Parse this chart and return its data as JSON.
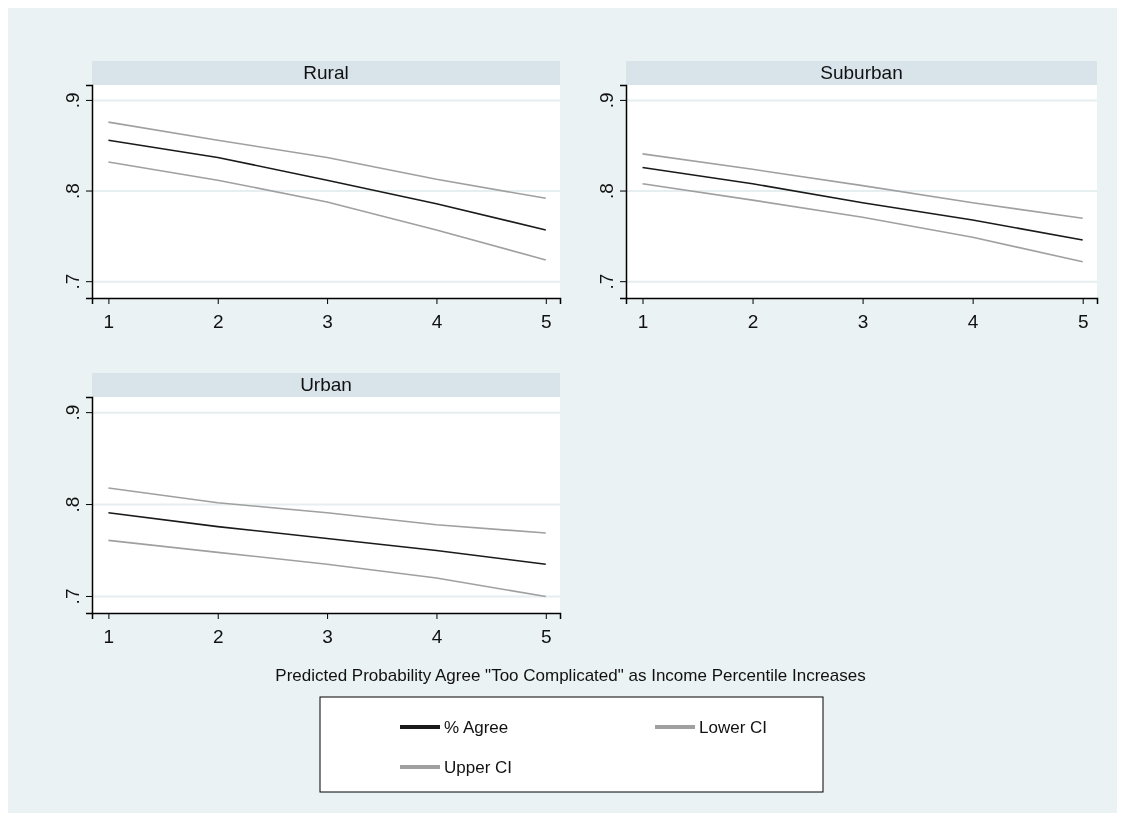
{
  "chart_data": [
    {
      "type": "line",
      "title": "Rural",
      "x": [
        1,
        2,
        3,
        4,
        5
      ],
      "xlim": [
        0.85,
        5.13
      ],
      "xticks": [
        1,
        2,
        3,
        4,
        5
      ],
      "ylim": [
        0.682,
        0.917
      ],
      "yticks": [
        {
          "value": 0.7,
          "label": ".7"
        },
        {
          "value": 0.8,
          "label": ".8"
        },
        {
          "value": 0.9,
          "label": ".9"
        }
      ],
      "grid": "y",
      "legend": false,
      "series": [
        {
          "color": "#1a1a1a",
          "values": [
            0.856,
            0.837,
            0.812,
            0.786,
            0.757
          ]
        },
        {
          "color": "#a0a0a0",
          "values": [
            0.832,
            0.812,
            0.788,
            0.757,
            0.724
          ]
        },
        {
          "color": "#a0a0a0",
          "values": [
            0.876,
            0.856,
            0.837,
            0.813,
            0.792
          ]
        }
      ]
    },
    {
      "type": "line",
      "title": "Suburban",
      "x": [
        1,
        2,
        3,
        4,
        5
      ],
      "xlim": [
        0.85,
        5.13
      ],
      "xticks": [
        1,
        2,
        3,
        4,
        5
      ],
      "ylim": [
        0.682,
        0.917
      ],
      "yticks": [
        {
          "value": 0.7,
          "label": ".7"
        },
        {
          "value": 0.8,
          "label": ".8"
        },
        {
          "value": 0.9,
          "label": ".9"
        }
      ],
      "grid": "y",
      "legend": false,
      "series": [
        {
          "color": "#1a1a1a",
          "values": [
            0.826,
            0.808,
            0.787,
            0.768,
            0.746
          ]
        },
        {
          "color": "#a0a0a0",
          "values": [
            0.808,
            0.79,
            0.771,
            0.749,
            0.722
          ]
        },
        {
          "color": "#a0a0a0",
          "values": [
            0.841,
            0.824,
            0.806,
            0.787,
            0.77
          ]
        }
      ]
    },
    {
      "type": "line",
      "title": "Urban",
      "x": [
        1,
        2,
        3,
        4,
        5
      ],
      "xlim": [
        0.85,
        5.13
      ],
      "xticks": [
        1,
        2,
        3,
        4,
        5
      ],
      "ylim": [
        0.682,
        0.917
      ],
      "yticks": [
        {
          "value": 0.7,
          "label": ".7"
        },
        {
          "value": 0.8,
          "label": ".8"
        },
        {
          "value": 0.9,
          "label": ".9"
        }
      ],
      "grid": "y",
      "legend": "bottom",
      "xlabel": "Predicted Probability Agree \"Too Complicated\" as Income Percentile Increases",
      "series": [
        {
          "name": "% Agree",
          "color": "#1a1a1a",
          "values": [
            0.791,
            0.776,
            0.763,
            0.75,
            0.735
          ]
        },
        {
          "name": "Lower CI",
          "color": "#a0a0a0",
          "values": [
            0.761,
            0.748,
            0.735,
            0.72,
            0.7
          ]
        },
        {
          "name": "Upper CI",
          "color": "#a0a0a0",
          "values": [
            0.818,
            0.802,
            0.791,
            0.778,
            0.769
          ]
        }
      ]
    }
  ]
}
